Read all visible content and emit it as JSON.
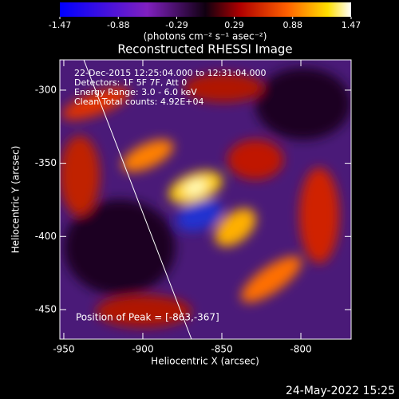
{
  "chart_data": {
    "type": "image",
    "title": "Reconstructed RHESSI Image",
    "x_label": "Heliocentric X (arcsec)",
    "y_label": "Heliocentric Y (arcsec)",
    "colorbar_label": "(photons cm⁻² s⁻¹ asec⁻²)",
    "clim": [
      -1.47,
      1.47
    ],
    "colorbar_ticks": [
      -1.47,
      -0.88,
      -0.29,
      0.29,
      0.88,
      1.47
    ],
    "xlim": [
      -952.5,
      -768.2
    ],
    "xticks": [
      -950,
      -900,
      -850,
      -800
    ],
    "ylim": [
      -470.2,
      -279.3
    ],
    "yticks": [
      -450,
      -400,
      -350,
      -300
    ],
    "annotations": [
      "22-Dec-2015 12:25:04.000 to 12:31:04.000",
      "Detectors: 1F 5F 7F, Att 0",
      "Energy Range: 3.0 - 6.0 keV",
      "Clean      Total counts: 4.92E+04"
    ],
    "peak_label": "Position of Peak = [-863,-367]",
    "timestamp": "24-May-2022 15:25"
  }
}
